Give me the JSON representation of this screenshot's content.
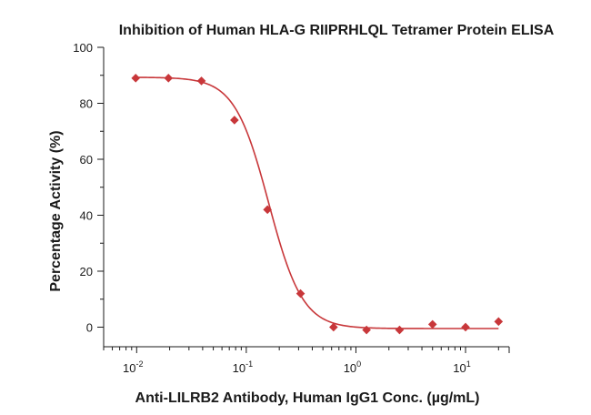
{
  "chart_data": {
    "type": "scatter",
    "title": "Inhibition of Human HLA-G RIIPRHLQL Tetramer Protein ELISA",
    "xlabel": "Anti-LILRB2 Antibody, Human IgG1 Conc. (µg/mL)",
    "ylabel": "Percentage Activity (%)",
    "x_scale": "log",
    "xlim": [
      0.005,
      25
    ],
    "ylim": [
      -7,
      100
    ],
    "x_ticks": [
      {
        "value": 0.01,
        "base": "10",
        "exp": "-2"
      },
      {
        "value": 0.1,
        "base": "10",
        "exp": "-1"
      },
      {
        "value": 1,
        "base": "10",
        "exp": "0"
      },
      {
        "value": 10,
        "base": "10",
        "exp": "1"
      }
    ],
    "y_ticks": [
      0,
      20,
      40,
      60,
      80,
      100
    ],
    "grid": false,
    "legend": "none",
    "series": [
      {
        "x": [
          0.0098,
          0.0195,
          0.039,
          0.078,
          0.156,
          0.3125,
          0.625,
          1.25,
          2.5,
          5,
          10,
          20
        ],
        "y": [
          89,
          89,
          88,
          74,
          42,
          12,
          0,
          -1,
          -1,
          1,
          0,
          2
        ],
        "marker": "diamond",
        "color": "#c8373a"
      }
    ],
    "fit_curve": {
      "model": "4PL",
      "top": 89.3,
      "bottom": -0.5,
      "ec50": 0.16,
      "hill": 2.8,
      "color": "#c8373a"
    }
  }
}
